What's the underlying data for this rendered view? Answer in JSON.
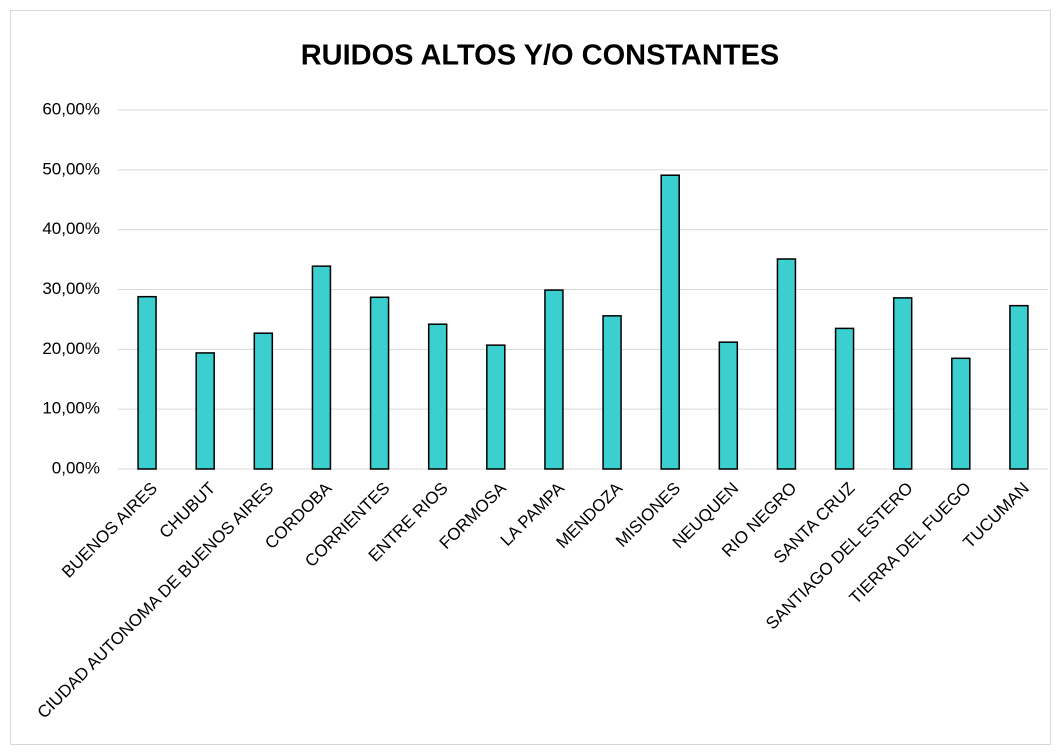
{
  "chart_data": {
    "type": "bar",
    "title": "RUIDOS ALTOS Y/O CONSTANTES",
    "categories": [
      "BUENOS AIRES",
      "CHUBUT",
      "CIUDAD AUTONOMA DE BUENOS AIRES",
      "CORDOBA",
      "CORRIENTES",
      "ENTRE RIOS",
      "FORMOSA",
      "LA PAMPA",
      "MENDOZA",
      "MISIONES",
      "NEUQUEN",
      "RIO NEGRO",
      "SANTA CRUZ",
      "SANTIAGO DEL ESTERO",
      "TIERRA DEL FUEGO",
      "TUCUMAN"
    ],
    "values": [
      28.8,
      19.4,
      22.7,
      33.9,
      28.7,
      24.2,
      20.7,
      29.9,
      25.6,
      49.1,
      21.2,
      35.1,
      23.5,
      28.6,
      18.5,
      27.3
    ],
    "color": "#3ccfcf",
    "ylim": [
      0,
      60
    ],
    "yticks": [
      {
        "value": 0,
        "label": "0,00%"
      },
      {
        "value": 10,
        "label": "10,00%"
      },
      {
        "value": 20,
        "label": "20,00%"
      },
      {
        "value": 30,
        "label": "30,00%"
      },
      {
        "value": 40,
        "label": "40,00%"
      },
      {
        "value": 50,
        "label": "50,00%"
      },
      {
        "value": 60,
        "label": "60,00%"
      }
    ],
    "grid": true
  }
}
